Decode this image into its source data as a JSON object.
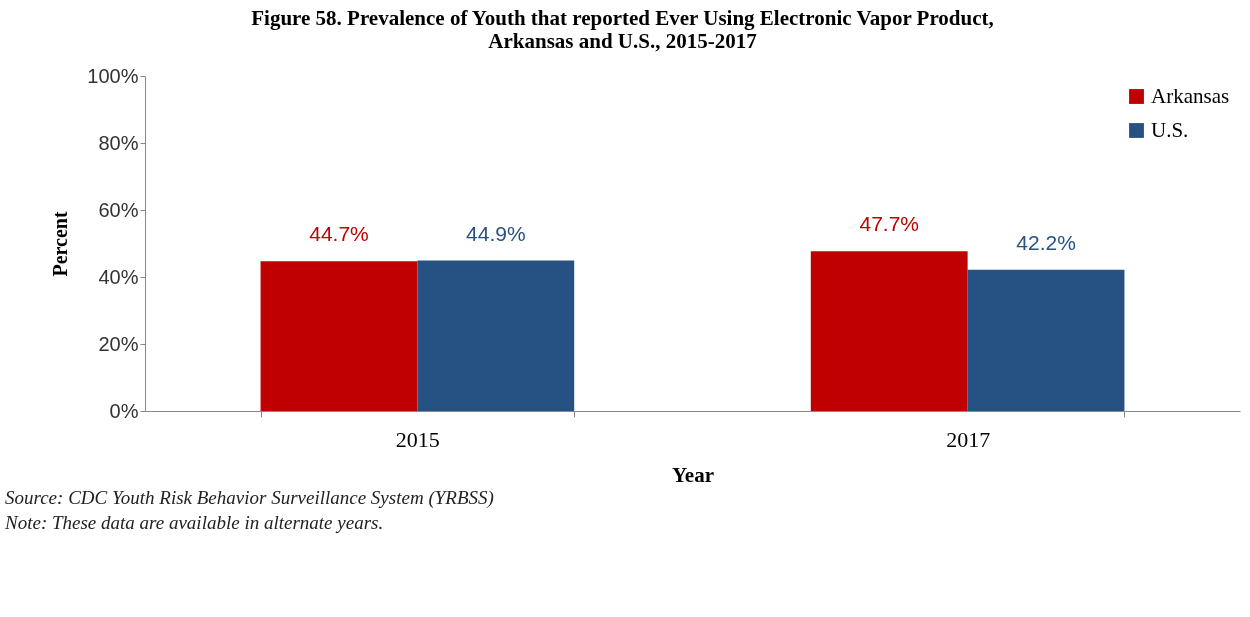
{
  "chart_data": {
    "type": "bar",
    "title": [
      "Figure 58. Prevalence of Youth that reported  Ever Using Electronic Vapor Product,",
      "Arkansas and U.S., 2015-2017"
    ],
    "xlabel": "Year",
    "ylabel": "Percent",
    "categories": [
      "2015",
      "2017"
    ],
    "series": [
      {
        "name": "Arkansas",
        "color": "#c00000",
        "values": [
          44.7,
          47.7
        ],
        "value_labels": [
          "44.7%",
          "47.7%"
        ]
      },
      {
        "name": "U.S.",
        "color": "#255283",
        "values": [
          44.9,
          42.2
        ],
        "value_labels": [
          "44.9%",
          "42.2%"
        ]
      }
    ],
    "ylim": [
      0,
      100
    ],
    "yticks": [
      {
        "value": 0,
        "label": "0%"
      },
      {
        "value": 20,
        "label": "20%"
      },
      {
        "value": 40,
        "label": "40%"
      },
      {
        "value": 60,
        "label": "60%"
      },
      {
        "value": 80,
        "label": "80%"
      },
      {
        "value": 100,
        "label": "100%"
      }
    ],
    "legend": "top right",
    "annotations": [
      "Source: CDC Youth Risk Behavior Surveillance System (YRBSS)",
      "Note: These data are available in alternate years."
    ]
  }
}
